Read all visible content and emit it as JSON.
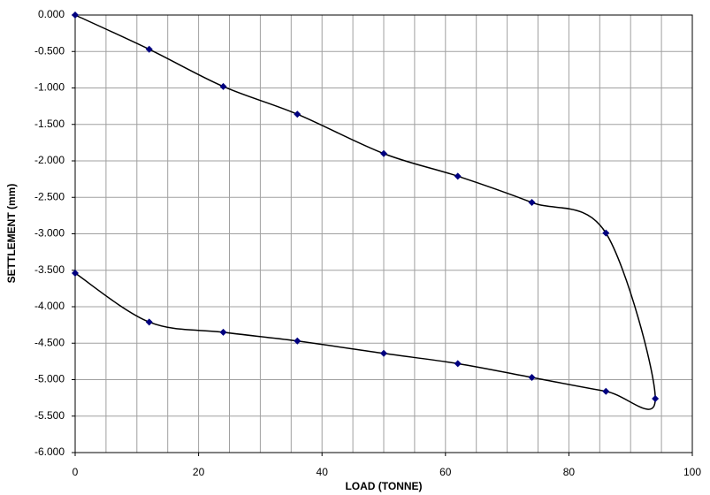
{
  "chart_data": {
    "type": "scatter",
    "x_label": "LOAD (TONNE)",
    "y_label": "SETTLEMENT (mm)",
    "x": [
      0,
      12,
      24,
      36,
      50,
      62,
      74,
      86,
      94,
      86,
      74,
      62,
      50,
      36,
      24,
      12,
      0
    ],
    "values": [
      0,
      -0.47,
      -0.98,
      -1.36,
      -1.9,
      -2.21,
      -2.57,
      -2.99,
      -5.26,
      -5.16,
      -4.97,
      -4.78,
      -4.64,
      -4.47,
      -4.35,
      -4.21,
      -3.54
    ],
    "color": "#000080",
    "line_color": "#000000",
    "smooth": true,
    "xlim": [
      0,
      100
    ],
    "xticks": [
      0,
      20,
      40,
      60,
      80,
      100
    ],
    "minor_grid_step": 5,
    "ylim": [
      -6,
      0
    ],
    "yticks": [
      {
        "value": 0,
        "label": "0.000"
      },
      {
        "value": -0.5,
        "label": "-0.500"
      },
      {
        "value": -1,
        "label": "-1.000"
      },
      {
        "value": -1.5,
        "label": "-1.500"
      },
      {
        "value": -2,
        "label": "-2.000"
      },
      {
        "value": -2.5,
        "label": "-2.500"
      },
      {
        "value": -3,
        "label": "-3.000"
      },
      {
        "value": -3.5,
        "label": "-3.500"
      },
      {
        "value": -4,
        "label": "-4.000"
      },
      {
        "value": -4.5,
        "label": "-4.500"
      },
      {
        "value": -5,
        "label": "-5.000"
      },
      {
        "value": -5.5,
        "label": "-5.500"
      },
      {
        "value": -6,
        "label": "-6.000"
      }
    ],
    "grid": true
  }
}
